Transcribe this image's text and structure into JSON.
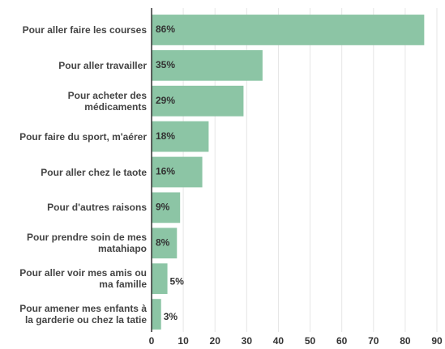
{
  "chart_data": {
    "type": "barh",
    "categories": [
      "Pour aller faire les courses",
      "Pour aller travailler",
      "Pour acheter des\nmédicaments",
      "Pour faire du sport, m'aérer",
      "Pour aller chez le taote",
      "Pour d'autres raisons",
      "Pour prendre soin de mes\nmatahiapo",
      "Pour aller voir mes amis ou\nma famille",
      "Pour amener mes enfants à\nla garderie ou chez la tatie"
    ],
    "values": [
      86,
      35,
      29,
      18,
      16,
      9,
      8,
      5,
      3
    ],
    "value_labels": [
      "86%",
      "35%",
      "29%",
      "18%",
      "16%",
      "9%",
      "8%",
      "5%",
      "3%"
    ],
    "color": "#8cc5a5",
    "xlim": [
      0,
      90
    ],
    "xticks": [
      0,
      10,
      20,
      30,
      40,
      50,
      60,
      70,
      80,
      90
    ],
    "grid": true
  }
}
